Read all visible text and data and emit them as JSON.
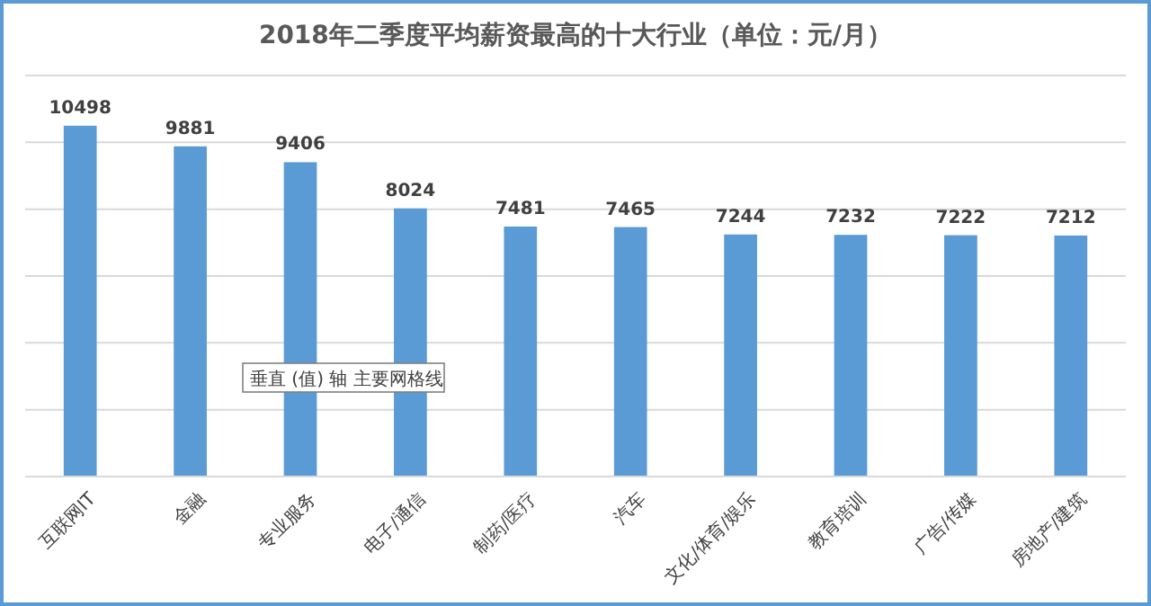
{
  "chart_data": {
    "type": "bar",
    "title": "2018年二季度平均薪资最高的十大行业（单位：元/月）",
    "categories": [
      "互联网IT",
      "金融",
      "专业服务",
      "电子/通信",
      "制药/医疗",
      "汽车",
      "文化/体育/娱乐",
      "教育培训",
      "广告/传媒",
      "房地产/建筑"
    ],
    "values": [
      10498,
      9881,
      9406,
      8024,
      7481,
      7465,
      7244,
      7232,
      7222,
      7212
    ],
    "color": "#5b9bd5",
    "data_labels": true,
    "grid": "y",
    "tick_labels": "x",
    "ylim": [
      0,
      12000
    ],
    "yticks": [
      {
        "value": 0,
        "label": null
      },
      {
        "value": 2000,
        "label": null
      },
      {
        "value": 4000,
        "label": null
      },
      {
        "value": 6000,
        "label": null
      },
      {
        "value": 8000,
        "label": null
      },
      {
        "value": 10000,
        "label": null
      },
      {
        "value": 12000,
        "label": null
      }
    ],
    "annotations": [
      "垂直 (值) 轴 主要网格线"
    ]
  }
}
